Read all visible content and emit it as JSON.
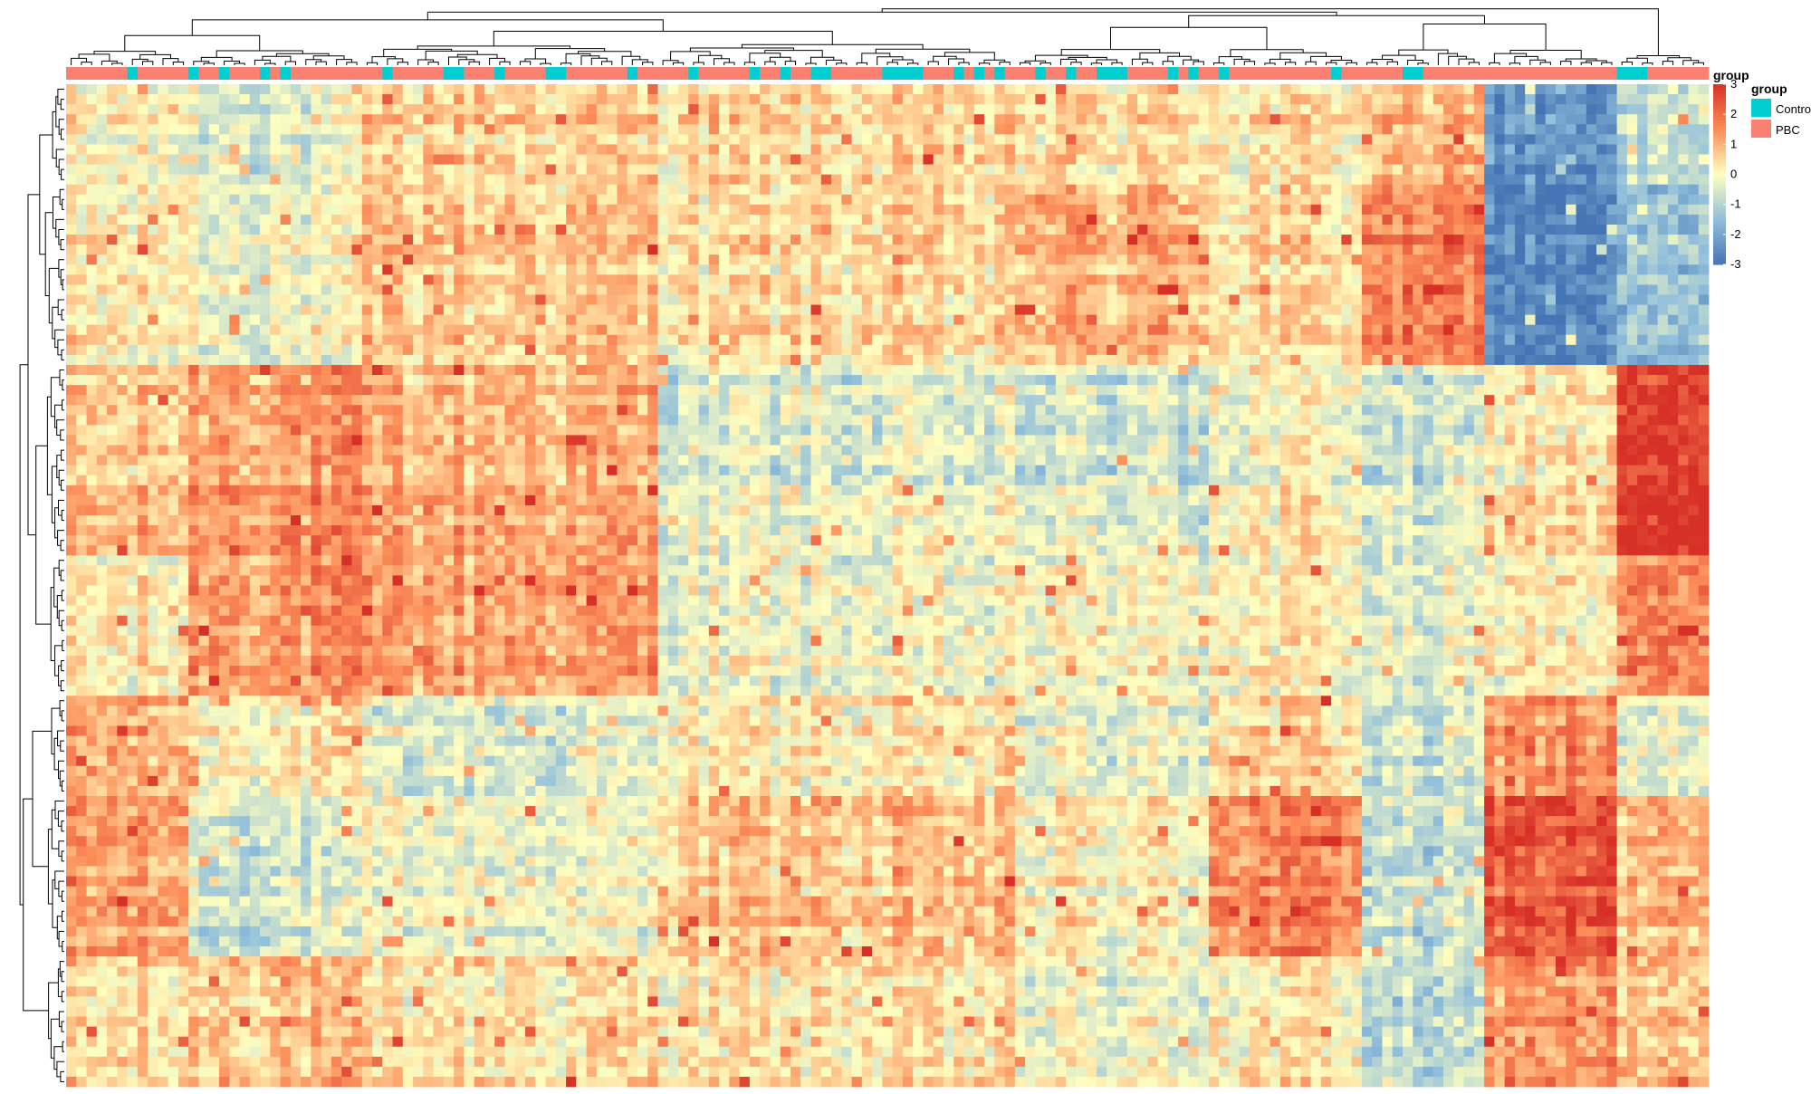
{
  "chart_data": {
    "type": "heatmap",
    "title": "",
    "xlabel": "",
    "ylabel": "",
    "n_rows": 100,
    "n_cols": 161,
    "color_scale": {
      "min": -3,
      "max": 3,
      "stops": [
        {
          "value": -3,
          "color": "#4575b4"
        },
        {
          "value": -1.5,
          "color": "#91bfdb"
        },
        {
          "value": 0,
          "color": "#ffffbf"
        },
        {
          "value": 1.5,
          "color": "#fc8d59"
        },
        {
          "value": 3,
          "color": "#d73027"
        }
      ],
      "tick_labels": [
        "3",
        "2",
        "1",
        "0",
        "-1",
        "-2",
        "-3"
      ]
    },
    "annotation": {
      "name": "group",
      "categories": [
        {
          "label": "Control",
          "color": "#00ced1"
        },
        {
          "label": "PBC",
          "color": "#fa8072"
        }
      ]
    },
    "row_clusters": [
      {
        "rows": [
          0,
          10
        ],
        "id": "r1"
      },
      {
        "rows": [
          10,
          28
        ],
        "id": "r2"
      },
      {
        "rows": [
          28,
          47
        ],
        "id": "r3"
      },
      {
        "rows": [
          47,
          61
        ],
        "id": "r4"
      },
      {
        "rows": [
          61,
          71
        ],
        "id": "r5"
      },
      {
        "rows": [
          71,
          87
        ],
        "id": "r6"
      },
      {
        "rows": [
          87,
          100
        ],
        "id": "r7"
      }
    ],
    "col_clusters": [
      {
        "cols": [
          0,
          12
        ],
        "id": "c1"
      },
      {
        "cols": [
          12,
          29
        ],
        "id": "c2"
      },
      {
        "cols": [
          29,
          58
        ],
        "id": "c3"
      },
      {
        "cols": [
          58,
          93
        ],
        "id": "c4"
      },
      {
        "cols": [
          93,
          112
        ],
        "id": "c5"
      },
      {
        "cols": [
          112,
          127
        ],
        "id": "c6"
      },
      {
        "cols": [
          127,
          139
        ],
        "id": "c7"
      },
      {
        "cols": [
          139,
          152
        ],
        "id": "c8"
      },
      {
        "cols": [
          152,
          161
        ],
        "id": "c9"
      }
    ],
    "block_means": [
      [
        0.0,
        -0.3,
        0.6,
        0.5,
        0.4,
        0.3,
        0.9,
        -2.3,
        -0.8
      ],
      [
        0.2,
        -0.2,
        0.7,
        0.4,
        1.0,
        0.4,
        1.6,
        -2.6,
        -1.5
      ],
      [
        0.7,
        1.3,
        1.0,
        -0.4,
        -0.6,
        0.0,
        -0.7,
        0.3,
        2.7
      ],
      [
        0.2,
        1.4,
        1.3,
        -0.2,
        0.0,
        0.2,
        -0.4,
        0.2,
        1.6
      ],
      [
        1.1,
        0.3,
        -0.4,
        0.3,
        -0.2,
        0.6,
        -0.6,
        1.6,
        -0.3
      ],
      [
        1.2,
        -0.6,
        -0.2,
        0.7,
        0.1,
        1.6,
        -0.8,
        2.3,
        0.8
      ],
      [
        0.4,
        0.8,
        0.3,
        0.3,
        -0.2,
        0.2,
        -0.9,
        1.4,
        0.6
      ]
    ],
    "column_groups_control_runs": [
      [
        6,
        7
      ],
      [
        12,
        13
      ],
      [
        15,
        16
      ],
      [
        19,
        20
      ],
      [
        21,
        22
      ],
      [
        31,
        32
      ],
      [
        37,
        39
      ],
      [
        42,
        43
      ],
      [
        47,
        49
      ],
      [
        55,
        56
      ],
      [
        61,
        62
      ],
      [
        67,
        68
      ],
      [
        70,
        71
      ],
      [
        73,
        75
      ],
      [
        80,
        84
      ],
      [
        87,
        88
      ],
      [
        89,
        90
      ],
      [
        91,
        92
      ],
      [
        95,
        96
      ],
      [
        98,
        99
      ],
      [
        101,
        104
      ],
      [
        108,
        109
      ],
      [
        110,
        111
      ],
      [
        113,
        114
      ],
      [
        124,
        125
      ],
      [
        131,
        133
      ],
      [
        152,
        155
      ]
    ]
  }
}
